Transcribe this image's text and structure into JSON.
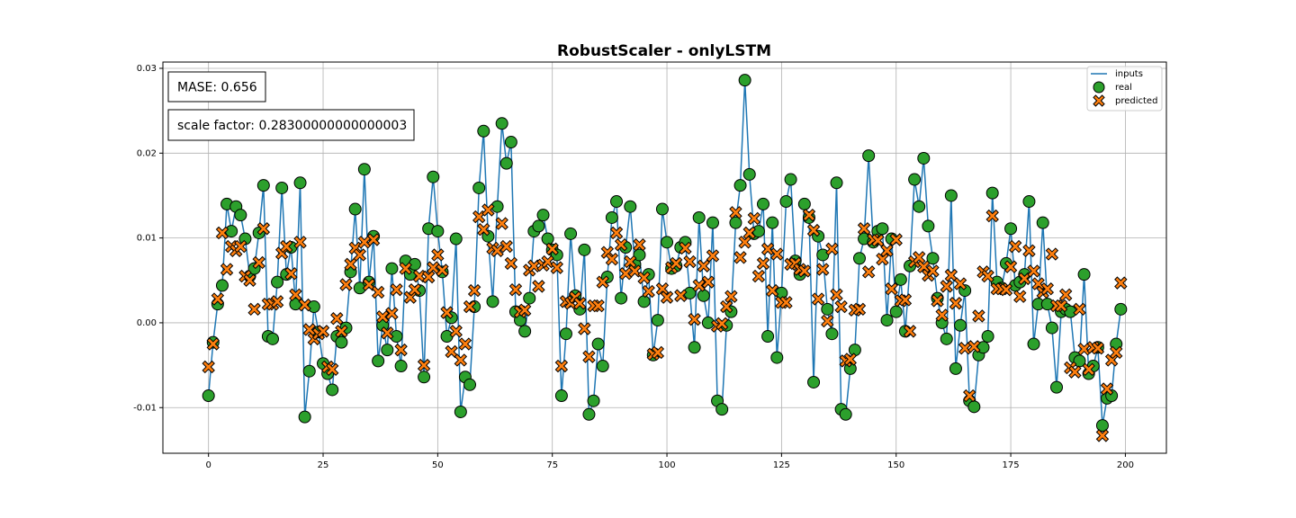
{
  "chart_data": {
    "type": "line_scatter",
    "title": "RobustScaler - onlyLSTM",
    "annotations": [
      "MASE: 0.656",
      "scale factor: 0.28300000000000003"
    ],
    "xlim": [
      -9.95,
      208.95
    ],
    "ylim": [
      -0.01538,
      0.03074
    ],
    "xticks": [
      0,
      25,
      50,
      75,
      100,
      125,
      150,
      175,
      200
    ],
    "yticks": [
      -0.01,
      {
        "value": 0,
        "label": "0.00"
      },
      0.01,
      0.02,
      0.03
    ],
    "grid": true,
    "legend": "upper right",
    "series": [
      {
        "name": "inputs",
        "style": "line",
        "color": "#1f77b4",
        "values": [
          -0.0086,
          -0.0023,
          0.0022,
          0.0044,
          0.014,
          0.0108,
          0.0137,
          0.0127,
          0.0099,
          0.0055,
          0.0064,
          0.0106,
          0.0162,
          -0.0016,
          -0.0019,
          0.0048,
          0.0159,
          0.0057,
          0.0089,
          0.0022,
          0.0165,
          -0.0111,
          -0.0057,
          0.0019,
          -0.0011,
          -0.0048,
          -0.006,
          -0.0079,
          -0.0016,
          -0.0023,
          -0.0006,
          0.006,
          0.0134,
          0.0041,
          0.0181,
          0.0048,
          0.0102,
          -0.0045,
          -0.0003,
          -0.0032,
          0.0064,
          -0.0016,
          -0.0051,
          0.0073,
          0.0057,
          0.0069,
          0.0038,
          -0.0064,
          0.0111,
          0.0172,
          0.0108,
          0.006,
          -0.0016,
          0.0006,
          0.0099,
          -0.0105,
          -0.0064,
          -0.0073,
          0.0019,
          0.0159,
          0.0226,
          0.0102,
          0.0025,
          0.0137,
          0.0235,
          0.0188,
          0.0213,
          0.0013,
          0.0003,
          -0.001,
          0.0029,
          0.0108,
          0.0114,
          0.0127,
          0.0099,
          0.0086,
          0.008,
          -0.0086,
          -0.0013,
          0.0105,
          0.0032,
          0.0016,
          0.0086,
          -0.0108,
          -0.0092,
          -0.0025,
          -0.0051,
          0.0054,
          0.0124,
          0.0143,
          0.0029,
          0.0089,
          0.0137,
          0.0069,
          0.008,
          0.0025,
          0.0057,
          -0.0038,
          0.0003,
          0.0134,
          0.0095,
          0.0064,
          0.0067,
          0.0089,
          0.0095,
          0.0035,
          -0.0029,
          0.0124,
          0.0032,
          0,
          0.0118,
          -0.0092,
          -0.0102,
          -0.0003,
          0.0013,
          0.0118,
          0.0162,
          0.0286,
          0.0175,
          0.0105,
          0.0108,
          0.014,
          -0.0016,
          0.0118,
          -0.0041,
          0.0035,
          0.0143,
          0.0169,
          0.0073,
          0.0057,
          0.014,
          0.0124,
          -0.007,
          0.0102,
          0.008,
          0.0016,
          -0.0013,
          0.0165,
          -0.0102,
          -0.0108,
          -0.0054,
          -0.0032,
          0.0076,
          0.0099,
          0.0197,
          0.0095,
          0.0108,
          0.0111,
          0.0003,
          0.0099,
          0.0013,
          0.0051,
          -0.001,
          0.0067,
          0.0169,
          0.0137,
          0.0194,
          0.0114,
          0.0076,
          0.0029,
          0,
          -0.0019,
          0.015,
          -0.0054,
          -0.0003,
          0.0038,
          -0.0092,
          -0.0099,
          -0.0038,
          -0.0029,
          -0.0016,
          0.0153,
          0.0048,
          0.0041,
          0.007,
          0.0111,
          0.0044,
          0.0048,
          0.0057,
          0.0143,
          -0.0025,
          0.0022,
          0.0118,
          0.0022,
          -0.0006,
          -0.0076,
          0.0013,
          0.0016,
          0.0013,
          -0.0041,
          -0.0045,
          0.0057,
          -0.006,
          -0.0051,
          -0.0029,
          -0.0121,
          -0.0089,
          -0.0086,
          -0.0025,
          0.0016
        ]
      },
      {
        "name": "real",
        "style": "circle",
        "color": "#2ca02c",
        "values": [
          -0.0086,
          -0.0023,
          0.0022,
          0.0044,
          0.014,
          0.0108,
          0.0137,
          0.0127,
          0.0099,
          0.0055,
          0.0064,
          0.0106,
          0.0162,
          -0.0016,
          -0.0019,
          0.0048,
          0.0159,
          0.0057,
          0.0089,
          0.0022,
          0.0165,
          -0.0111,
          -0.0057,
          0.0019,
          -0.0011,
          -0.0048,
          -0.006,
          -0.0079,
          -0.0016,
          -0.0023,
          -0.0006,
          0.006,
          0.0134,
          0.0041,
          0.0181,
          0.0048,
          0.0102,
          -0.0045,
          -0.0003,
          -0.0032,
          0.0064,
          -0.0016,
          -0.0051,
          0.0073,
          0.0057,
          0.0069,
          0.0038,
          -0.0064,
          0.0111,
          0.0172,
          0.0108,
          0.006,
          -0.0016,
          0.0006,
          0.0099,
          -0.0105,
          -0.0064,
          -0.0073,
          0.0019,
          0.0159,
          0.0226,
          0.0102,
          0.0025,
          0.0137,
          0.0235,
          0.0188,
          0.0213,
          0.0013,
          0.0003,
          -0.001,
          0.0029,
          0.0108,
          0.0114,
          0.0127,
          0.0099,
          0.0086,
          0.008,
          -0.0086,
          -0.0013,
          0.0105,
          0.0032,
          0.0016,
          0.0086,
          -0.0108,
          -0.0092,
          -0.0025,
          -0.0051,
          0.0054,
          0.0124,
          0.0143,
          0.0029,
          0.0089,
          0.0137,
          0.0069,
          0.008,
          0.0025,
          0.0057,
          -0.0038,
          0.0003,
          0.0134,
          0.0095,
          0.0064,
          0.0067,
          0.0089,
          0.0095,
          0.0035,
          -0.0029,
          0.0124,
          0.0032,
          0,
          0.0118,
          -0.0092,
          -0.0102,
          -0.0003,
          0.0013,
          0.0118,
          0.0162,
          0.0286,
          0.0175,
          0.0105,
          0.0108,
          0.014,
          -0.0016,
          0.0118,
          -0.0041,
          0.0035,
          0.0143,
          0.0169,
          0.0073,
          0.0057,
          0.014,
          0.0124,
          -0.007,
          0.0102,
          0.008,
          0.0016,
          -0.0013,
          0.0165,
          -0.0102,
          -0.0108,
          -0.0054,
          -0.0032,
          0.0076,
          0.0099,
          0.0197,
          0.0095,
          0.0108,
          0.0111,
          0.0003,
          0.0099,
          0.0013,
          0.0051,
          -0.001,
          0.0067,
          0.0169,
          0.0137,
          0.0194,
          0.0114,
          0.0076,
          0.0029,
          0,
          -0.0019,
          0.015,
          -0.0054,
          -0.0003,
          0.0038,
          -0.0092,
          -0.0099,
          -0.0038,
          -0.0029,
          -0.0016,
          0.0153,
          0.0048,
          0.0041,
          0.007,
          0.0111,
          0.0044,
          0.0048,
          0.0057,
          0.0143,
          -0.0025,
          0.0022,
          0.0118,
          0.0022,
          -0.0006,
          -0.0076,
          0.0013,
          0.0016,
          0.0013,
          -0.0041,
          -0.0045,
          0.0057,
          -0.006,
          -0.0051,
          -0.0029,
          -0.0121,
          -0.0089,
          -0.0086,
          -0.0025,
          0.0016
        ]
      },
      {
        "name": "predicted",
        "style": "x",
        "color": "#ff7f0e",
        "values": [
          -0.0052,
          -0.0025,
          0.0028,
          0.0106,
          0.0063,
          0.009,
          0.0085,
          0.009,
          0.0055,
          0.005,
          0.0016,
          0.0071,
          0.0111,
          0.0022,
          0.0022,
          0.0025,
          0.0082,
          0.009,
          0.0058,
          0.0033,
          0.0095,
          0.0021,
          -0.0008,
          -0.0019,
          -0.0013,
          -0.001,
          -0.0052,
          -0.0055,
          0.0005,
          -0.001,
          0.0045,
          0.0069,
          0.0088,
          0.008,
          0.0095,
          0.0045,
          0.0098,
          0.0036,
          0.0007,
          -0.0012,
          0.0011,
          0.0039,
          -0.0032,
          0.0064,
          0.003,
          0.0039,
          0.0055,
          -0.005,
          0.0054,
          0.0065,
          0.008,
          0.0062,
          0.0012,
          -0.0034,
          -0.001,
          -0.0044,
          -0.0025,
          0.0019,
          0.0038,
          0.0125,
          0.011,
          0.0133,
          0.0088,
          0.0085,
          0.0117,
          0.009,
          0.007,
          0.0039,
          0.0013,
          0.0015,
          0.0062,
          0.0067,
          0.0043,
          0.0068,
          0.0072,
          0.0087,
          0.0065,
          -0.0051,
          0.0025,
          0.0023,
          0.003,
          0.0023,
          -0.0007,
          -0.004,
          0.002,
          0.002,
          0.0048,
          0.0083,
          0.0075,
          0.0106,
          0.0092,
          0.0058,
          0.0072,
          0.0061,
          0.0092,
          0.0053,
          0.0037,
          -0.0037,
          -0.0035,
          0.004,
          0.003,
          0.0065,
          0.007,
          0.0032,
          0.0088,
          0.0072,
          0.0004,
          0.0044,
          0.0067,
          0.0048,
          0.0079,
          -0.0004,
          -0.0001,
          0.0019,
          0.0031,
          0.013,
          0.0077,
          0.0095,
          0.0106,
          0.0123,
          0.0055,
          0.007,
          0.0087,
          0.0038,
          0.0081,
          0.0024,
          0.0024,
          0.0069,
          0.007,
          0.0063,
          0.0061,
          0.0127,
          0.0109,
          0.0028,
          0.0063,
          0.0002,
          0.0087,
          0.0033,
          0.0019,
          -0.0045,
          -0.0043,
          0.0015,
          0.0016,
          0.0111,
          0.006,
          0.0098,
          0.0097,
          0.0075,
          0.0085,
          0.004,
          0.0098,
          0.0026,
          0.0027,
          -0.001,
          0.0072,
          0.0077,
          0.0066,
          0.0056,
          0.0061,
          0.0026,
          0.0009,
          0.0043,
          0.0056,
          0.0023,
          0.0046,
          -0.003,
          -0.0086,
          -0.0028,
          0.0008,
          0.006,
          0.0055,
          0.0126,
          0.004,
          0.004,
          0.0039,
          0.0066,
          0.009,
          0.0031,
          0.0052,
          0.0085,
          0.0061,
          0.0046,
          0.0036,
          0.004,
          0.0081,
          0.002,
          0.002,
          0.0033,
          -0.0053,
          -0.0058,
          0.0016,
          -0.0031,
          -0.0055,
          -0.0029,
          -0.003,
          -0.0133,
          -0.0078,
          -0.0044,
          -0.0035,
          0.0047
        ]
      }
    ]
  }
}
